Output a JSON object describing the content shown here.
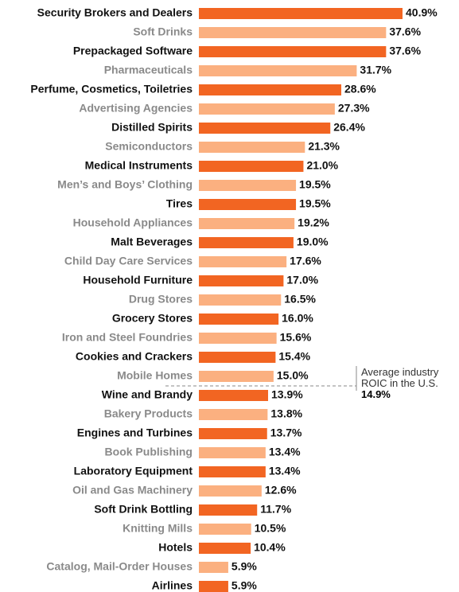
{
  "chart_data": {
    "type": "bar",
    "orientation": "horizontal",
    "categories": [
      "Security Brokers and Dealers",
      "Soft Drinks",
      "Prepackaged Software",
      "Pharmaceuticals",
      "Perfume, Cosmetics, Toiletries",
      "Advertising Agencies",
      "Distilled Spirits",
      "Semiconductors",
      "Medical Instruments",
      "Men’s and Boys’ Clothing",
      "Tires",
      "Household Appliances",
      "Malt Beverages",
      "Child Day Care Services",
      "Household Furniture",
      "Drug Stores",
      "Grocery Stores",
      "Iron and Steel Foundries",
      "Cookies and Crackers",
      "Mobile Homes",
      "Wine and Brandy",
      "Bakery Products",
      "Engines and Turbines",
      "Book Publishing",
      "Laboratory Equipment",
      "Oil and Gas Machinery",
      "Soft Drink Bottling",
      "Knitting Mills",
      "Hotels",
      "Catalog, Mail-Order Houses",
      "Airlines"
    ],
    "values": [
      40.9,
      37.6,
      37.6,
      31.7,
      28.6,
      27.3,
      26.4,
      21.3,
      21.0,
      19.5,
      19.5,
      19.2,
      19.0,
      17.6,
      17.0,
      16.5,
      16.0,
      15.6,
      15.4,
      15.0,
      13.9,
      13.8,
      13.7,
      13.4,
      13.4,
      12.6,
      11.7,
      10.5,
      10.4,
      5.9,
      5.9
    ],
    "value_labels": [
      "40.9%",
      "37.6%",
      "37.6%",
      "31.7%",
      "28.6%",
      "27.3%",
      "26.4%",
      "21.3%",
      "21.0%",
      "19.5%",
      "19.5%",
      "19.2%",
      "19.0%",
      "17.6%",
      "17.0%",
      "16.5%",
      "16.0%",
      "15.6%",
      "15.4%",
      "15.0%",
      "13.9%",
      "13.8%",
      "13.7%",
      "13.4%",
      "13.4%",
      "12.6%",
      "11.7%",
      "10.5%",
      "10.4%",
      "5.9%",
      "5.9%"
    ],
    "colors": [
      "#f26522",
      "#fbb080"
    ],
    "annotation": {
      "text": "Average industry ROIC in the U.S.",
      "value": 14.9,
      "value_label": "14.9%"
    }
  }
}
